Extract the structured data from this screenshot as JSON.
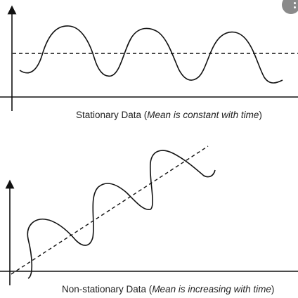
{
  "top_panel": {
    "caption_prefix": "Stationary Data (",
    "caption_emphasis": "Mean is constant with time",
    "caption_suffix": ")"
  },
  "bottom_panel": {
    "caption_prefix": "Non-stationary Data (",
    "caption_emphasis": "Mean is increasing with time",
    "caption_suffix": ")"
  },
  "colors": {
    "stroke": "#111111",
    "badge": "#8a8a8a"
  },
  "icons": {
    "more_options": "more-options-icon"
  }
}
